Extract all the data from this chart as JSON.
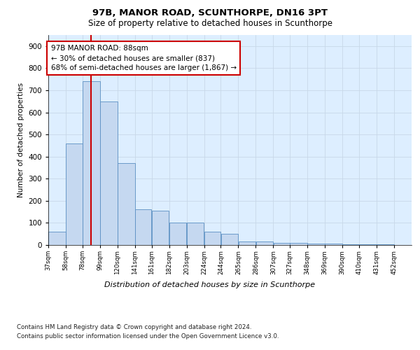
{
  "title1": "97B, MANOR ROAD, SCUNTHORPE, DN16 3PT",
  "title2": "Size of property relative to detached houses in Scunthorpe",
  "xlabel": "Distribution of detached houses by size in Scunthorpe",
  "ylabel": "Number of detached properties",
  "footnote1": "Contains HM Land Registry data © Crown copyright and database right 2024.",
  "footnote2": "Contains public sector information licensed under the Open Government Licence v3.0.",
  "bar_left_edges": [
    37,
    58,
    78,
    99,
    120,
    141,
    161,
    182,
    203,
    224,
    244,
    265,
    286,
    307,
    327,
    348,
    369,
    390,
    410,
    431
  ],
  "bar_widths": [
    21,
    20,
    21,
    21,
    21,
    20,
    21,
    21,
    21,
    20,
    21,
    21,
    21,
    20,
    21,
    21,
    21,
    20,
    21,
    21
  ],
  "bar_heights": [
    60,
    460,
    740,
    650,
    370,
    160,
    155,
    100,
    100,
    60,
    50,
    15,
    15,
    10,
    10,
    5,
    5,
    3,
    3,
    3
  ],
  "tick_labels": [
    "37sqm",
    "58sqm",
    "78sqm",
    "99sqm",
    "120sqm",
    "141sqm",
    "161sqm",
    "182sqm",
    "203sqm",
    "224sqm",
    "244sqm",
    "265sqm",
    "286sqm",
    "307sqm",
    "327sqm",
    "348sqm",
    "369sqm",
    "390sqm",
    "410sqm",
    "431sqm",
    "452sqm"
  ],
  "bar_color": "#c5d8f0",
  "bar_edge_color": "#5a8fc2",
  "vline_x": 88,
  "vline_color": "#cc0000",
  "annotation_text": "97B MANOR ROAD: 88sqm\n← 30% of detached houses are smaller (837)\n68% of semi-detached houses are larger (1,867) →",
  "annotation_box_color": "#ffffff",
  "annotation_box_edge": "#cc0000",
  "ylim": [
    0,
    950
  ],
  "yticks": [
    0,
    100,
    200,
    300,
    400,
    500,
    600,
    700,
    800,
    900
  ],
  "grid_color": "#c8d8e8",
  "bg_color": "#ddeeff",
  "fig_bg": "#ffffff"
}
